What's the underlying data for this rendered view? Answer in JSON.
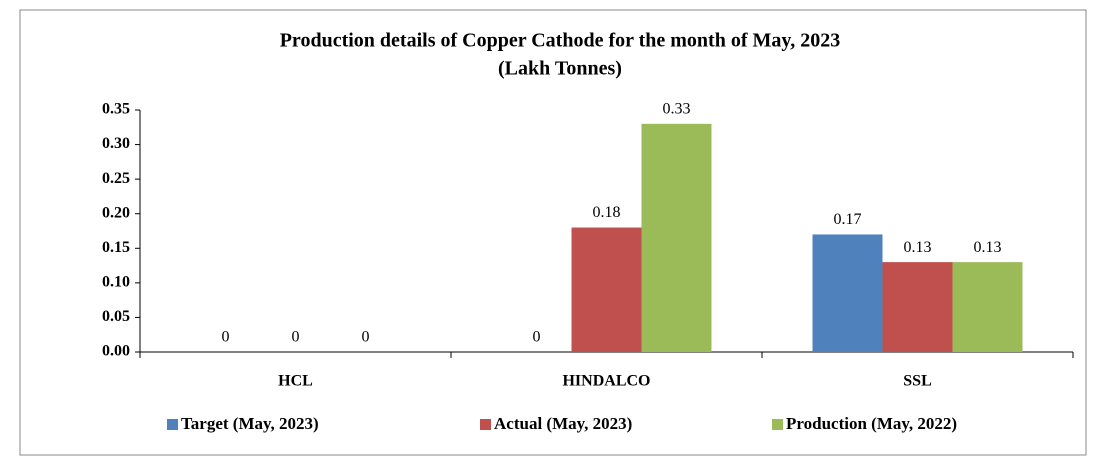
{
  "chart_data": {
    "type": "bar",
    "title": "Production details of Copper Cathode for the month of May, 2023",
    "subtitle": "(Lakh Tonnes)",
    "categories": [
      "HCL",
      "HINDALCO",
      "SSL"
    ],
    "series": [
      {
        "name": "Target (May, 2023)",
        "color": "#4f81bd",
        "values": [
          0,
          0,
          0.17
        ]
      },
      {
        "name": "Actual (May, 2023)",
        "color": "#c0504d",
        "values": [
          0,
          0.18,
          0.13
        ]
      },
      {
        "name": "Production (May, 2022)",
        "color": "#9bbb59",
        "values": [
          0,
          0.33,
          0.13
        ]
      }
    ],
    "ylim": [
      0,
      0.35
    ],
    "yticks": [
      {
        "value": 0,
        "label": "0.00"
      },
      0.05,
      {
        "value": 0.1,
        "label": "0.10"
      },
      0.15,
      {
        "value": 0.2,
        "label": "0.20"
      },
      0.25,
      {
        "value": 0.3,
        "label": "0.30"
      },
      0.35
    ],
    "grid": false,
    "legend": "bottom"
  }
}
